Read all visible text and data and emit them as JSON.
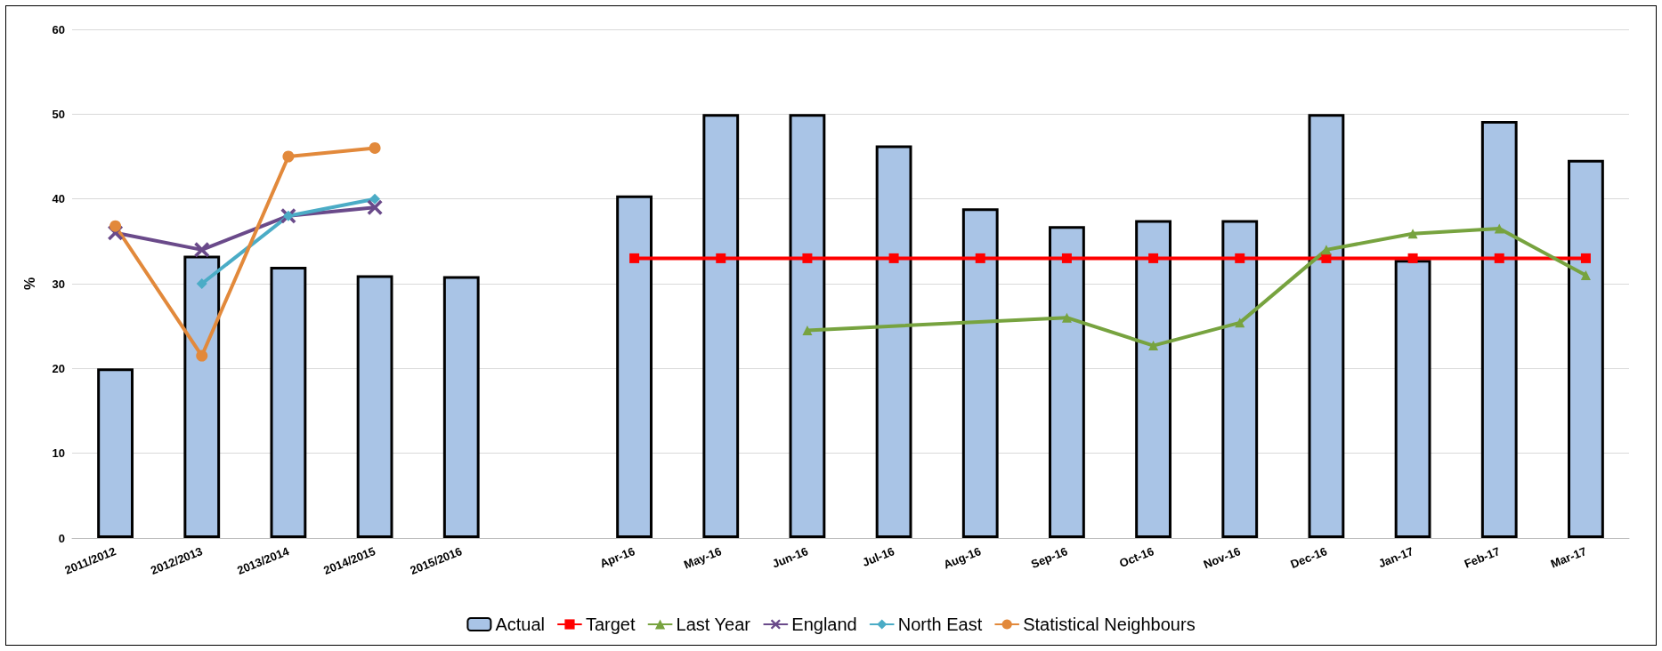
{
  "chart_data": {
    "type": "bar",
    "ylabel": "%",
    "categories": [
      "2011/2012",
      "2012/2013",
      "2013/2014",
      "2014/2015",
      "2015/2016",
      null,
      "Apr-16",
      "May-16",
      "Jun-16",
      "Jul-16",
      "Aug-16",
      "Sep-16",
      "Oct-16",
      "Nov-16",
      "Dec-16",
      "Jan-17",
      "Feb-17",
      "Mar-17"
    ],
    "series": [
      {
        "name": "Actual",
        "color": "#a9c4e6",
        "values": [
          20,
          33.3,
          32,
          31,
          30.9,
          null,
          40.4,
          50,
          50,
          46.3,
          38.9,
          36.8,
          37.5,
          37.5,
          50,
          32.8,
          49.2,
          44.6
        ]
      },
      {
        "name": "Target",
        "type": "line",
        "color": "#ff0000",
        "marker": "square",
        "values": [
          null,
          null,
          null,
          null,
          null,
          null,
          33,
          33,
          33,
          33,
          33,
          33,
          33,
          33,
          33,
          33,
          33,
          33
        ]
      },
      {
        "name": "Last Year",
        "type": "line",
        "color": "#77a33f",
        "marker": "triangle",
        "values": [
          null,
          null,
          null,
          null,
          null,
          null,
          null,
          null,
          24.5,
          null,
          null,
          26,
          22.7,
          25.4,
          34,
          35.9,
          36.5,
          31
        ]
      },
      {
        "name": "England",
        "type": "line",
        "color": "#6a4a8a",
        "marker": "cross",
        "values": [
          36,
          34,
          38,
          39,
          null,
          null,
          null,
          null,
          null,
          null,
          null,
          null,
          null,
          null,
          null,
          null,
          null,
          null
        ]
      },
      {
        "name": "North East",
        "type": "line",
        "color": "#4bacc6",
        "marker": "diamond",
        "values": [
          null,
          30,
          38,
          40,
          null,
          null,
          null,
          null,
          null,
          null,
          null,
          null,
          null,
          null,
          null,
          null,
          null,
          null
        ]
      },
      {
        "name": "Statistical Neighbours",
        "type": "line",
        "color": "#e2893b",
        "marker": "circle",
        "values": [
          36.8,
          21.5,
          45,
          46,
          null,
          null,
          null,
          null,
          null,
          null,
          null,
          null,
          null,
          null,
          null,
          null,
          null,
          null
        ]
      }
    ],
    "ylim": [
      0,
      60
    ],
    "yticks": [
      0,
      10,
      20,
      30,
      40,
      50,
      60
    ],
    "grid": "y",
    "legend": "bottom"
  }
}
